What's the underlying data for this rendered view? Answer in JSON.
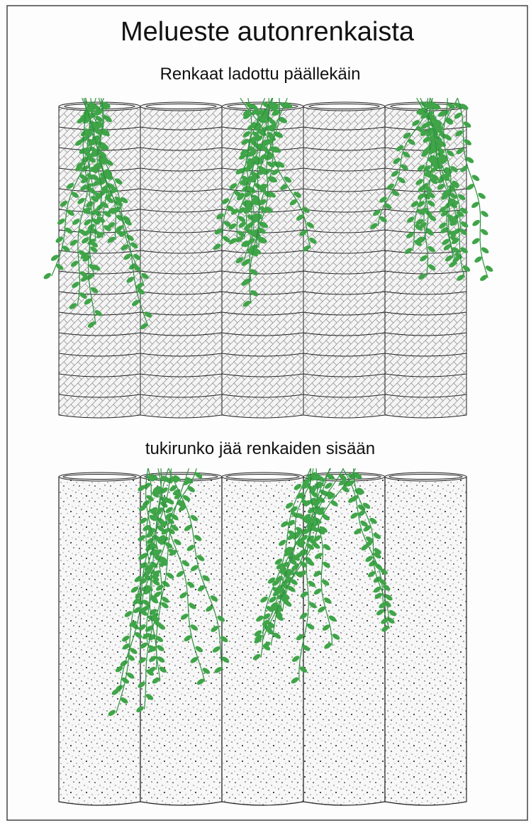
{
  "title": "Melueste autonrenkaista",
  "sections": [
    {
      "label": "Renkaat ladottu päällekäin"
    },
    {
      "label": "tukirunko jää renkaiden sisään"
    }
  ]
}
